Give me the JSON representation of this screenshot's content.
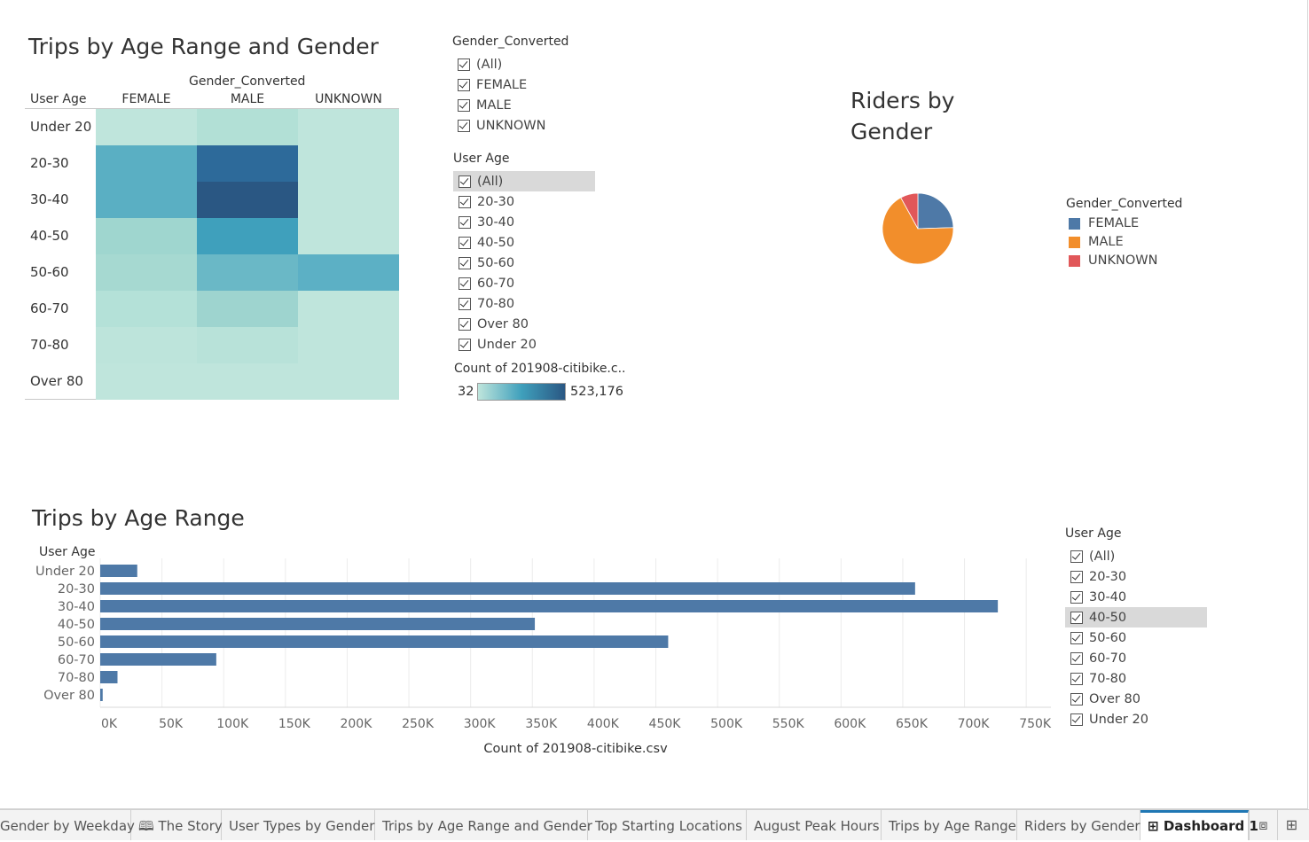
{
  "colors": {
    "female": "#4e79a7",
    "male": "#f28e2b",
    "unknown": "#e15759",
    "bar": "#4e79a7",
    "heat_low": "#bfe5dc",
    "heat_high": "#2a5783"
  },
  "heatmap": {
    "title": "Trips by Age Range and Gender",
    "col_group_label": "Gender_Converted",
    "row_header": "User Age",
    "columns": [
      "FEMALE",
      "MALE",
      "UNKNOWN"
    ],
    "rows": [
      "Under 20",
      "20-30",
      "30-40",
      "40-50",
      "50-60",
      "60-70",
      "70-80",
      "Over 80"
    ],
    "cell_colors": [
      [
        "#bfe5dc",
        "#b2e0d6",
        "#bfe5dc"
      ],
      [
        "#5aafc3",
        "#2d6a9a",
        "#bfe5dc"
      ],
      [
        "#5aafc3",
        "#2a5783",
        "#bfe5dc"
      ],
      [
        "#9fd6cf",
        "#3fa0bc",
        "#bfe5dc"
      ],
      [
        "#a6d9d1",
        "#6ab8c6",
        "#5cb0c5"
      ],
      [
        "#b4e1d8",
        "#9ed4cf",
        "#bfe5dc"
      ],
      [
        "#bde4db",
        "#b8e2d9",
        "#bfe5dc"
      ],
      [
        "#bfe5dc",
        "#bfe5dc",
        "#bfe5dc"
      ]
    ]
  },
  "gender_filter": {
    "title": "Gender_Converted",
    "items": [
      "(All)",
      "FEMALE",
      "MALE",
      "UNKNOWN"
    ]
  },
  "age_filter_top": {
    "title": "User Age",
    "items": [
      "(All)",
      "20-30",
      "30-40",
      "40-50",
      "50-60",
      "60-70",
      "70-80",
      "Over 80",
      "Under 20"
    ],
    "highlighted_index": 0
  },
  "color_legend": {
    "title": "Count of 201908-citibike.c..",
    "min": "32",
    "max": "523,176"
  },
  "pie": {
    "title_line1": "Riders by",
    "title_line2": "Gender",
    "legend_title": "Gender_Converted",
    "legend": [
      "FEMALE",
      "MALE",
      "UNKNOWN"
    ]
  },
  "bar_chart": {
    "title": "Trips by Age Range",
    "row_header": "User Age"
  },
  "age_filter_bottom": {
    "title": "User Age",
    "items": [
      "(All)",
      "20-30",
      "30-40",
      "40-50",
      "50-60",
      "60-70",
      "70-80",
      "Over 80",
      "Under 20"
    ],
    "highlighted_index": 3
  },
  "chart_data": [
    {
      "type": "bar",
      "orientation": "horizontal",
      "title": "Trips by Age Range",
      "categories": [
        "Under 20",
        "20-30",
        "30-40",
        "40-50",
        "50-60",
        "60-70",
        "70-80",
        "Over 80"
      ],
      "values": [
        30000,
        660000,
        727000,
        352000,
        460000,
        94000,
        14000,
        2000
      ],
      "xlabel": "Count of 201908-citibike.csv",
      "ylabel": "User Age",
      "xlim": [
        0,
        770000
      ],
      "ticks": [
        "0K",
        "50K",
        "100K",
        "150K",
        "200K",
        "250K",
        "300K",
        "350K",
        "400K",
        "450K",
        "500K",
        "550K",
        "600K",
        "650K",
        "700K",
        "750K"
      ],
      "tick_values": [
        0,
        50000,
        100000,
        150000,
        200000,
        250000,
        300000,
        350000,
        400000,
        450000,
        500000,
        550000,
        600000,
        650000,
        700000,
        750000
      ],
      "grid": true
    },
    {
      "type": "pie",
      "title": "Riders by Gender",
      "categories": [
        "FEMALE",
        "MALE",
        "UNKNOWN"
      ],
      "values": [
        24.5,
        67.5,
        8.0
      ]
    }
  ],
  "tabs": [
    "Gender by Weekday",
    "The Story",
    "User Types by Gender",
    "Trips by Age Range and Gender",
    "Top Starting Locations",
    "August Peak Hours",
    "Trips by Age Range",
    "Riders by Gender",
    "Dashboard 1"
  ],
  "active_tab": "Dashboard 1"
}
